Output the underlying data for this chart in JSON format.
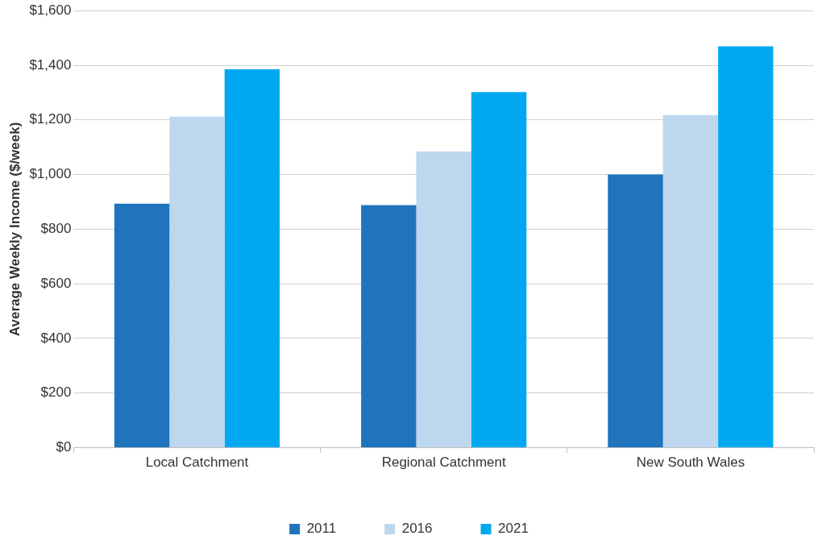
{
  "chart_data": {
    "type": "bar",
    "ylabel": "Average Weekly Income ($/week)",
    "categories": [
      "Local Catchment",
      "Regional Catchment",
      "New South Wales"
    ],
    "series": [
      {
        "name": "2011",
        "color": "#1f74bd",
        "values": [
          893,
          888,
          1000
        ]
      },
      {
        "name": "2016",
        "color": "#bdd7ee",
        "values": [
          1212,
          1084,
          1218
        ]
      },
      {
        "name": "2021",
        "color": "#00a8f0",
        "values": [
          1385,
          1302,
          1469
        ]
      }
    ],
    "ylim": [
      0,
      1600
    ],
    "yticks": [
      {
        "value": 0,
        "label": "$0"
      },
      {
        "value": 200,
        "label": "$200"
      },
      {
        "value": 400,
        "label": "$400"
      },
      {
        "value": 600,
        "label": "$600"
      },
      {
        "value": 800,
        "label": "$800"
      },
      {
        "value": 1000,
        "label": "$1,000"
      },
      {
        "value": 1200,
        "label": "$1,200"
      },
      {
        "value": 1400,
        "label": "$1,400"
      },
      {
        "value": 1600,
        "label": "$1,600"
      }
    ],
    "grid": "y",
    "legend": "bottom"
  }
}
